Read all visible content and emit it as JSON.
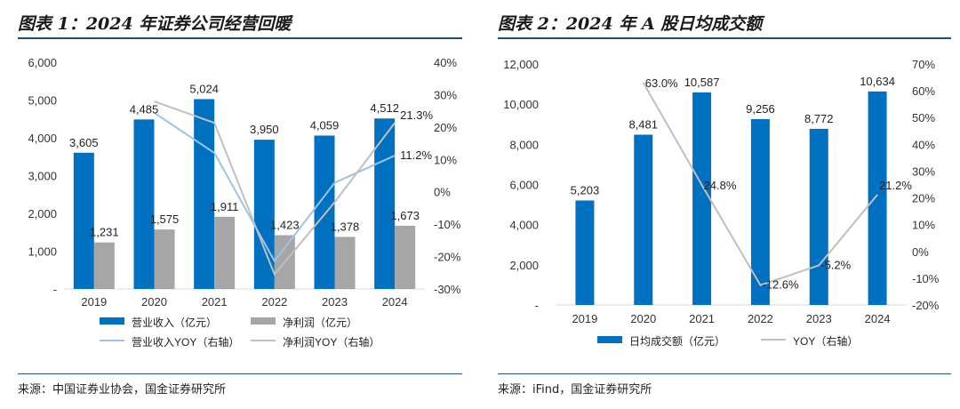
{
  "colors": {
    "bar_primary": "#0070c0",
    "bar_secondary": "#a6a6a6",
    "line_primary": "#9dc3e6",
    "line_secondary": "#bfbfbf",
    "rule": "#1f4e79"
  },
  "left": {
    "title": "图表 1：2024 年证券公司经营回暖",
    "source": "来源：中国证券业协会，国金证券研究所",
    "chart_data": {
      "type": "bar",
      "categories": [
        "2019",
        "2020",
        "2021",
        "2022",
        "2023",
        "2024"
      ],
      "y_ticks": [
        "-",
        "1,000",
        "2,000",
        "3,000",
        "4,000",
        "5,000",
        "6,000"
      ],
      "y2_ticks": [
        "-30%",
        "-20%",
        "-10%",
        "0%",
        "10%",
        "20%",
        "30%",
        "40%"
      ],
      "ylim": [
        0,
        6000
      ],
      "y2lim": [
        -30,
        40
      ],
      "series": [
        {
          "name": "营业收入（亿元）",
          "kind": "bar",
          "axis": "left",
          "values": [
            3605,
            4485,
            5024,
            3950,
            4059,
            4512
          ],
          "labels": [
            "3,605",
            "4,485",
            "5,024",
            "3,950",
            "4,059",
            "4,512"
          ]
        },
        {
          "name": "净利润（亿元）",
          "kind": "bar",
          "axis": "left",
          "values": [
            1231,
            1575,
            1911,
            1423,
            1378,
            1673
          ],
          "labels": [
            "1,231",
            "1,575",
            "1,911",
            "1,423",
            "1,378",
            "1,673"
          ]
        },
        {
          "name": "营业收入YOY（右轴）",
          "kind": "line",
          "axis": "right",
          "values": [
            null,
            24.4,
            12.0,
            -21.4,
            2.8,
            11.2
          ],
          "point_labels": {
            "5": "11.2%"
          }
        },
        {
          "name": "净利润YOY（右轴）",
          "kind": "line",
          "axis": "right",
          "values": [
            null,
            27.9,
            21.3,
            -25.5,
            -3.2,
            21.3
          ],
          "point_labels": {
            "5": "21.3%"
          }
        }
      ]
    }
  },
  "right": {
    "title": "图表 2：2024 年 A 股日均成交额",
    "source": "来源：iFind，国金证券研究所",
    "chart_data": {
      "type": "bar",
      "categories": [
        "2019",
        "2020",
        "2021",
        "2022",
        "2023",
        "2024"
      ],
      "y_ticks": [
        "-",
        "2,000",
        "4,000",
        "6,000",
        "8,000",
        "10,000",
        "12,000"
      ],
      "y2_ticks": [
        "-20%",
        "-10%",
        "0%",
        "10%",
        "20%",
        "30%",
        "40%",
        "50%",
        "60%",
        "70%"
      ],
      "ylim": [
        0,
        12000
      ],
      "y2lim": [
        -20,
        70
      ],
      "series": [
        {
          "name": "日均成交额（亿元）",
          "kind": "bar",
          "axis": "left",
          "values": [
            5203,
            8481,
            10587,
            9256,
            8772,
            10634
          ],
          "labels": [
            "5,203",
            "8,481",
            "10,587",
            "9,256",
            "8,772",
            "10,634"
          ]
        },
        {
          "name": "YOY（右轴）",
          "kind": "line",
          "axis": "right",
          "values": [
            null,
            63.0,
            24.8,
            -12.6,
            -5.2,
            21.2
          ],
          "point_labels": {
            "1": "63.0%",
            "2": "24.8%",
            "3": "-12.6%",
            "4": "-5.2%",
            "5": "21.2%"
          }
        }
      ]
    }
  }
}
